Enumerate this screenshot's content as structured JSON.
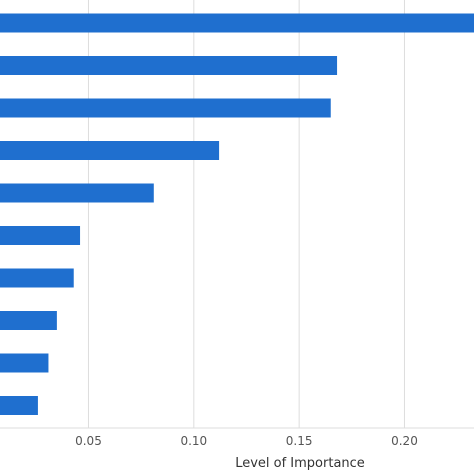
{
  "chart_data": {
    "type": "bar",
    "orientation": "horizontal",
    "xlabel": "Level of Importance",
    "x_ticks": [
      0.05,
      0.1,
      0.15,
      0.2
    ],
    "x_tick_labels": [
      "0.05",
      "0.10",
      "0.15",
      "0.20"
    ],
    "xlim": [
      0.008,
      0.233
    ],
    "grid": true,
    "bar_color": "#1f6fcf",
    "values": [
      0.233,
      0.168,
      0.165,
      0.112,
      0.081,
      0.046,
      0.043,
      0.035,
      0.031,
      0.026
    ]
  }
}
